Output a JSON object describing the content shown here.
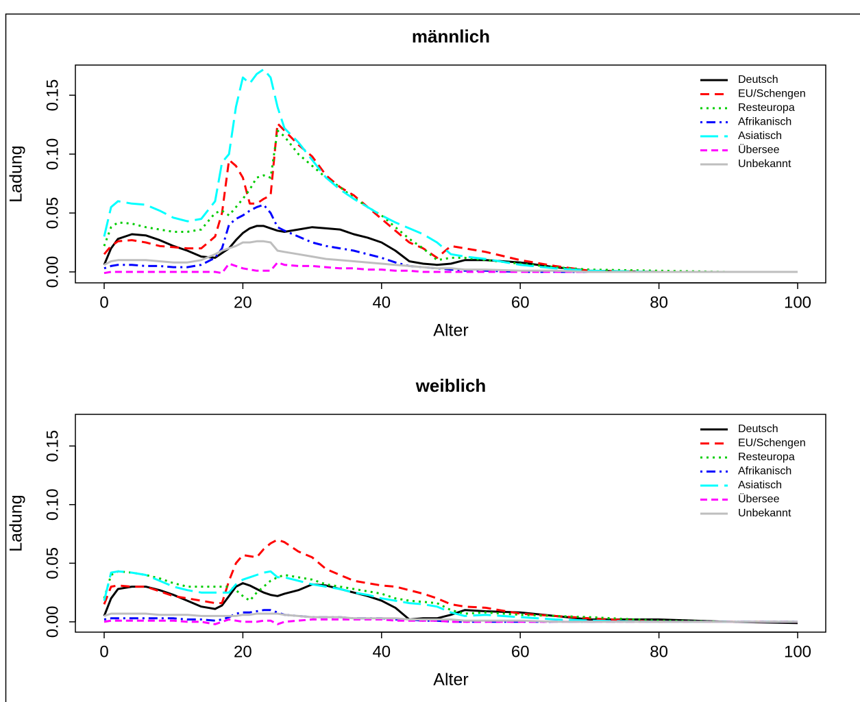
{
  "chart_data": [
    {
      "type": "line",
      "title": "männlich",
      "x_label": "Alter",
      "y_label": "Ladung",
      "x": [
        0,
        1,
        2,
        4,
        6,
        8,
        10,
        12,
        14,
        16,
        17,
        18,
        19,
        20,
        21,
        22,
        23,
        24,
        25,
        26,
        28,
        30,
        32,
        34,
        36,
        38,
        40,
        42,
        44,
        46,
        48,
        50,
        52,
        55,
        60,
        65,
        70,
        80,
        90,
        100
      ],
      "xlim": [
        -4.15,
        104.05
      ],
      "ylim": [
        -0.0093,
        0.1756
      ],
      "xticks": [
        0,
        20,
        40,
        60,
        80,
        100
      ],
      "yticks": [
        {
          "value": 0,
          "label": "0.00"
        },
        {
          "value": 0.05,
          "label": "0.05"
        },
        {
          "value": 0.1,
          "label": "0.10"
        },
        {
          "value": 0.15,
          "label": "0.15"
        }
      ],
      "legend": "top-right",
      "series": [
        {
          "name": "Deutsch",
          "color": "#000000",
          "linestyle": "solid",
          "values": [
            0.006,
            0.02,
            0.028,
            0.032,
            0.031,
            0.027,
            0.022,
            0.018,
            0.013,
            0.012,
            0.016,
            0.02,
            0.027,
            0.033,
            0.037,
            0.039,
            0.039,
            0.037,
            0.035,
            0.034,
            0.036,
            0.038,
            0.037,
            0.036,
            0.032,
            0.029,
            0.025,
            0.018,
            0.009,
            0.007,
            0.006,
            0.007,
            0.01,
            0.01,
            0.008,
            0.004,
            0.001,
            0,
            0,
            0
          ]
        },
        {
          "name": "EU/Schengen",
          "color": "#ff0000",
          "linestyle": "dashed",
          "values": [
            0.015,
            0.022,
            0.026,
            0.027,
            0.025,
            0.022,
            0.021,
            0.02,
            0.02,
            0.03,
            0.05,
            0.095,
            0.09,
            0.08,
            0.058,
            0.058,
            0.062,
            0.065,
            0.126,
            0.12,
            0.108,
            0.098,
            0.082,
            0.072,
            0.065,
            0.055,
            0.045,
            0.035,
            0.025,
            0.02,
            0.012,
            0.022,
            0.02,
            0.017,
            0.01,
            0.005,
            0.001,
            0,
            0,
            0
          ]
        },
        {
          "name": "Resteuropa",
          "color": "#00cc00",
          "linestyle": "dotted",
          "values": [
            0.022,
            0.038,
            0.042,
            0.041,
            0.038,
            0.036,
            0.034,
            0.034,
            0.036,
            0.05,
            0.052,
            0.048,
            0.055,
            0.062,
            0.07,
            0.08,
            0.082,
            0.08,
            0.12,
            0.115,
            0.1,
            0.09,
            0.08,
            0.072,
            0.063,
            0.055,
            0.048,
            0.038,
            0.028,
            0.02,
            0.01,
            0.012,
            0.012,
            0.01,
            0.007,
            0.004,
            0.002,
            0.001,
            0,
            0
          ]
        },
        {
          "name": "Afrikanisch",
          "color": "#0000ff",
          "linestyle": "dotdash",
          "values": [
            0.003,
            0.005,
            0.006,
            0.006,
            0.005,
            0.005,
            0.004,
            0.004,
            0.006,
            0.012,
            0.02,
            0.04,
            0.045,
            0.048,
            0.052,
            0.055,
            0.057,
            0.05,
            0.038,
            0.035,
            0.03,
            0.025,
            0.022,
            0.02,
            0.018,
            0.015,
            0.012,
            0.008,
            0.005,
            0.004,
            0.003,
            0.002,
            0.001,
            0.001,
            0,
            0,
            0,
            0,
            0,
            0
          ]
        },
        {
          "name": "Asiatisch",
          "color": "#00ffff",
          "linestyle": "longdash",
          "values": [
            0.03,
            0.055,
            0.06,
            0.058,
            0.057,
            0.052,
            0.046,
            0.043,
            0.045,
            0.06,
            0.093,
            0.1,
            0.14,
            0.165,
            0.16,
            0.168,
            0.172,
            0.165,
            0.14,
            0.122,
            0.11,
            0.095,
            0.08,
            0.07,
            0.062,
            0.055,
            0.048,
            0.042,
            0.037,
            0.032,
            0.025,
            0.015,
            0.013,
            0.011,
            0.006,
            0.003,
            0.001,
            0,
            0,
            0
          ]
        },
        {
          "name": "Übersee",
          "color": "#ff00ff",
          "linestyle": "twodash",
          "values": [
            -0.001,
            0,
            0,
            0,
            0,
            0,
            0,
            0,
            0,
            0,
            -0.001,
            0.007,
            0.005,
            0.003,
            0.002,
            0.001,
            0.001,
            0.001,
            0.008,
            0.006,
            0.005,
            0.005,
            0.004,
            0.003,
            0.003,
            0.002,
            0.002,
            0.001,
            0.001,
            0,
            0,
            0,
            0,
            0,
            0,
            0,
            0,
            0,
            0,
            0
          ]
        },
        {
          "name": "Unbekannt",
          "color": "#bebebe",
          "linestyle": "solid",
          "values": [
            0.006,
            0.009,
            0.01,
            0.01,
            0.01,
            0.009,
            0.008,
            0.008,
            0.01,
            0.015,
            0.018,
            0.02,
            0.022,
            0.025,
            0.025,
            0.026,
            0.026,
            0.025,
            0.018,
            0.017,
            0.015,
            0.013,
            0.011,
            0.01,
            0.009,
            0.008,
            0.007,
            0.006,
            0.005,
            0.004,
            0.003,
            0.003,
            0.002,
            0.002,
            0.001,
            0.001,
            0,
            0,
            0,
            0
          ]
        }
      ]
    },
    {
      "type": "line",
      "title": "weiblich",
      "x_label": "Alter",
      "y_label": "Ladung",
      "x": [
        0,
        1,
        2,
        4,
        6,
        8,
        10,
        12,
        14,
        16,
        17,
        18,
        19,
        20,
        21,
        22,
        23,
        24,
        25,
        26,
        28,
        30,
        32,
        34,
        36,
        38,
        40,
        42,
        44,
        46,
        48,
        50,
        52,
        55,
        60,
        65,
        70,
        80,
        90,
        100
      ],
      "xlim": [
        -4.15,
        104.05
      ],
      "ylim": [
        -0.0088,
        0.177
      ],
      "xticks": [
        0,
        20,
        40,
        60,
        80,
        100
      ],
      "yticks": [
        {
          "value": 0,
          "label": "0.00"
        },
        {
          "value": 0.05,
          "label": "0.05"
        },
        {
          "value": 0.1,
          "label": "0.10"
        },
        {
          "value": 0.15,
          "label": "0.15"
        }
      ],
      "legend": "top-right",
      "series": [
        {
          "name": "Deutsch",
          "color": "#000000",
          "linestyle": "solid",
          "values": [
            0.005,
            0.02,
            0.028,
            0.03,
            0.03,
            0.027,
            0.023,
            0.018,
            0.013,
            0.011,
            0.014,
            0.022,
            0.03,
            0.033,
            0.031,
            0.028,
            0.025,
            0.023,
            0.022,
            0.024,
            0.027,
            0.032,
            0.031,
            0.028,
            0.025,
            0.022,
            0.018,
            0.012,
            0.002,
            0.003,
            0.003,
            0.006,
            0.01,
            0.009,
            0.008,
            0.005,
            0.002,
            0.002,
            0,
            -0.001
          ]
        },
        {
          "name": "EU/Schengen",
          "color": "#ff0000",
          "linestyle": "dashed",
          "values": [
            0.015,
            0.03,
            0.031,
            0.03,
            0.03,
            0.026,
            0.022,
            0.02,
            0.018,
            0.016,
            0.016,
            0.035,
            0.05,
            0.057,
            0.056,
            0.055,
            0.062,
            0.067,
            0.07,
            0.068,
            0.06,
            0.055,
            0.045,
            0.04,
            0.035,
            0.033,
            0.031,
            0.03,
            0.027,
            0.024,
            0.02,
            0.015,
            0.013,
            0.012,
            0.007,
            0.005,
            0.003,
            0,
            0,
            0
          ]
        },
        {
          "name": "Resteuropa",
          "color": "#00cc00",
          "linestyle": "dotted",
          "values": [
            0.02,
            0.04,
            0.043,
            0.042,
            0.04,
            0.037,
            0.033,
            0.03,
            0.03,
            0.03,
            0.03,
            0.03,
            0.027,
            0.022,
            0.018,
            0.025,
            0.03,
            0.035,
            0.038,
            0.04,
            0.038,
            0.036,
            0.032,
            0.03,
            0.028,
            0.026,
            0.024,
            0.02,
            0.018,
            0.017,
            0.016,
            0.01,
            0.007,
            0.008,
            0.006,
            0.005,
            0.004,
            0.001,
            0,
            0
          ]
        },
        {
          "name": "Afrikanisch",
          "color": "#0000ff",
          "linestyle": "dotdash",
          "values": [
            0.002,
            0.003,
            0.003,
            0.003,
            0.003,
            0.003,
            0.003,
            0.002,
            0.002,
            0.001,
            0.002,
            0.004,
            0.007,
            0.008,
            0.008,
            0.009,
            0.01,
            0.01,
            0.008,
            0.006,
            0.005,
            0.004,
            0.004,
            0.004,
            0.003,
            0.003,
            0.003,
            0.002,
            0.002,
            0.001,
            0.001,
            0,
            0,
            0,
            0,
            0,
            0,
            0,
            0,
            0
          ]
        },
        {
          "name": "Asiatisch",
          "color": "#00ffff",
          "linestyle": "longdash",
          "values": [
            0.018,
            0.042,
            0.043,
            0.042,
            0.04,
            0.035,
            0.03,
            0.027,
            0.025,
            0.025,
            0.025,
            0.025,
            0.032,
            0.036,
            0.038,
            0.04,
            0.042,
            0.043,
            0.038,
            0.038,
            0.035,
            0.032,
            0.03,
            0.028,
            0.025,
            0.023,
            0.02,
            0.018,
            0.016,
            0.015,
            0.013,
            0.008,
            0.005,
            0.006,
            0.004,
            0.002,
            0.001,
            0,
            0,
            0
          ]
        },
        {
          "name": "Übersee",
          "color": "#ff00ff",
          "linestyle": "twodash",
          "values": [
            0,
            0.001,
            0.001,
            0.001,
            0.001,
            0.001,
            0.001,
            0,
            0,
            -0.002,
            0,
            0.002,
            0.001,
            0,
            0,
            0,
            0.001,
            0.001,
            -0.002,
            0,
            0.001,
            0.002,
            0.002,
            0.002,
            0.002,
            0.002,
            0.002,
            0.001,
            0.001,
            0.001,
            0.001,
            0,
            0,
            0,
            0,
            0,
            0,
            0,
            0,
            0
          ]
        },
        {
          "name": "Unbekannt",
          "color": "#bebebe",
          "linestyle": "solid",
          "values": [
            0.005,
            0.007,
            0.007,
            0.007,
            0.007,
            0.006,
            0.006,
            0.006,
            0.005,
            0.005,
            0.005,
            0.005,
            0.005,
            0.006,
            0.006,
            0.007,
            0.007,
            0.007,
            0.007,
            0.006,
            0.005,
            0.004,
            0.004,
            0.004,
            0.003,
            0.003,
            0.003,
            0.003,
            0.002,
            0.002,
            0.002,
            0.002,
            0.001,
            0.001,
            0.001,
            0,
            0,
            0,
            0,
            0
          ]
        }
      ]
    }
  ]
}
